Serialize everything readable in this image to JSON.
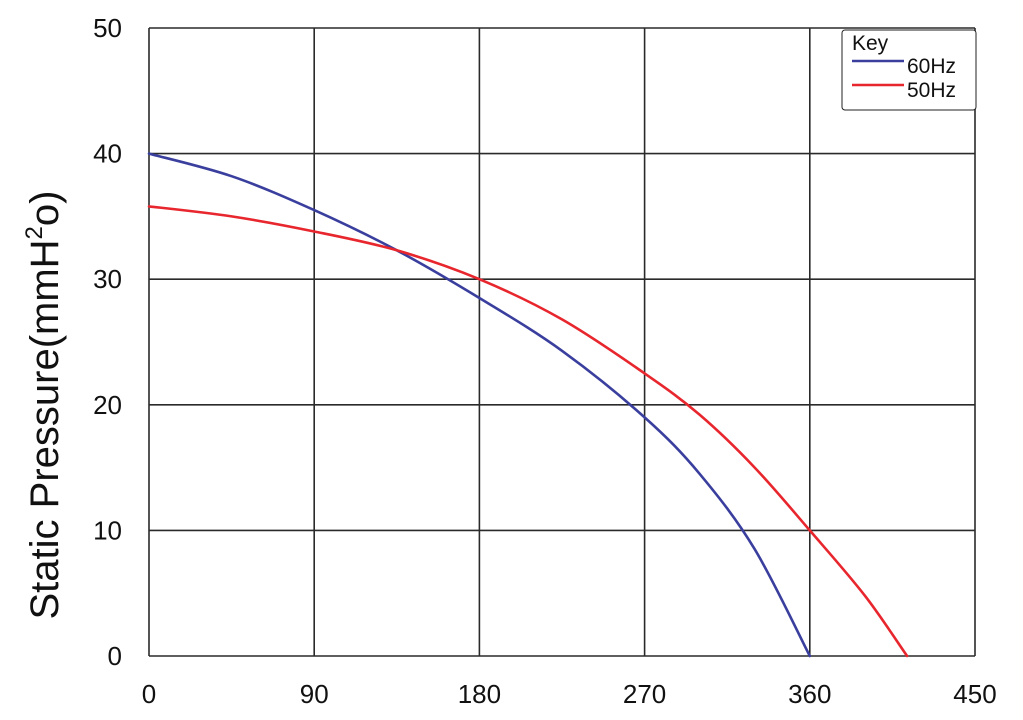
{
  "chart_data": {
    "type": "line",
    "title": "",
    "xlabel": "",
    "ylabel": "Static Pressure(mmH",
    "ylabel_sup": "2",
    "ylabel_end": "o)",
    "xlim": [
      0,
      450
    ],
    "ylim": [
      0,
      50
    ],
    "xticks": [
      "0",
      "90",
      "180",
      "270",
      "360",
      "450"
    ],
    "yticks": [
      "0",
      "10",
      "20",
      "30",
      "40",
      "50"
    ],
    "grid": true,
    "legend": {
      "title": "Key",
      "placement": "top-right"
    },
    "series": [
      {
        "name": "60Hz",
        "color": "#3a3f9e",
        "x": [
          0,
          45,
          90,
          135,
          180,
          225,
          270,
          300,
          330,
          360
        ],
        "y": [
          40,
          38.2,
          35.5,
          32.3,
          28.5,
          24.3,
          19,
          14.5,
          8.5,
          0
        ]
      },
      {
        "name": "50Hz",
        "color": "#e8262d",
        "x": [
          0,
          45,
          90,
          135,
          180,
          225,
          270,
          300,
          330,
          360,
          390,
          413
        ],
        "y": [
          35.8,
          35,
          33.8,
          32.3,
          30,
          26.8,
          22.5,
          19.2,
          15,
          10,
          4.8,
          0
        ]
      }
    ]
  }
}
